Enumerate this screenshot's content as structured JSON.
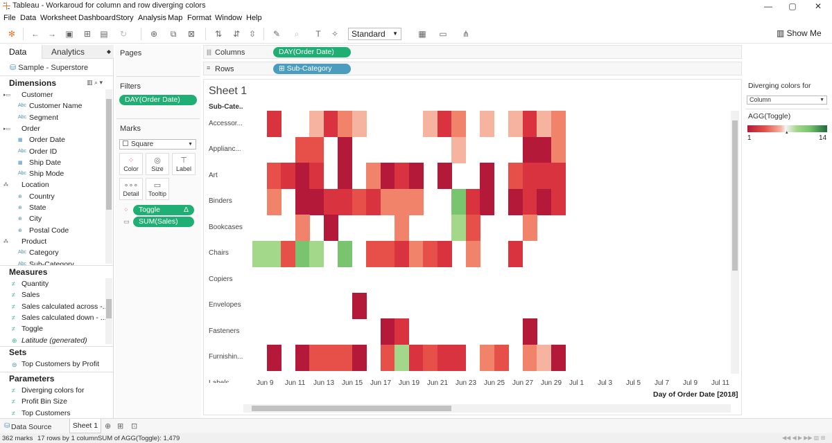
{
  "window": {
    "title": "Tableau - Workaroud for column and row diverging colors",
    "controls": [
      "—",
      "▢",
      "✕"
    ]
  },
  "menu": [
    "File",
    "Data",
    "Worksheet",
    "Dashboard",
    "Story",
    "Analysis",
    "Map",
    "Format",
    "Window",
    "Help"
  ],
  "toolbar": {
    "fit_select": "Standard",
    "show_me": "Show Me"
  },
  "data_pane": {
    "tabs": [
      "Data",
      "Analytics"
    ],
    "datasource": "Sample - Superstore",
    "dimensions_header": "Dimensions",
    "dimensions": [
      {
        "label": "Customer",
        "type": "folder",
        "indent": 0
      },
      {
        "label": "Customer Name",
        "type": "abc",
        "indent": 1
      },
      {
        "label": "Segment",
        "type": "abc",
        "indent": 1
      },
      {
        "label": "Order",
        "type": "folder",
        "indent": 0
      },
      {
        "label": "Order Date",
        "type": "date",
        "indent": 1
      },
      {
        "label": "Order ID",
        "type": "abc",
        "indent": 1
      },
      {
        "label": "Ship Date",
        "type": "date",
        "indent": 1
      },
      {
        "label": "Ship Mode",
        "type": "abc",
        "indent": 1
      },
      {
        "label": "Location",
        "type": "hier",
        "indent": 0
      },
      {
        "label": "Country",
        "type": "geo",
        "indent": 1
      },
      {
        "label": "State",
        "type": "geo",
        "indent": 1
      },
      {
        "label": "City",
        "type": "geo",
        "indent": 1
      },
      {
        "label": "Postal Code",
        "type": "geo",
        "indent": 1
      },
      {
        "label": "Product",
        "type": "hier",
        "indent": 0
      },
      {
        "label": "Category",
        "type": "abc",
        "indent": 1
      },
      {
        "label": "Sub-Category",
        "type": "abc",
        "indent": 1
      }
    ],
    "measures_header": "Measures",
    "measures": [
      "Quantity",
      "Sales",
      "Sales calculated across -...",
      "Sales calculated down - ...",
      "Toggle",
      "Latitude (generated)"
    ],
    "sets_header": "Sets",
    "sets": [
      "Top Customers by Profit"
    ],
    "parameters_header": "Parameters",
    "parameters": [
      "Diverging colors for",
      "Profit Bin Size",
      "Top Customers"
    ]
  },
  "cards": {
    "pages": "Pages",
    "filters": "Filters",
    "filter_pill": "DAY(Order Date)",
    "marks": "Marks",
    "mark_type": "Square",
    "mark_buttons": [
      "Color",
      "Size",
      "Label",
      "Detail",
      "Tooltip"
    ],
    "toggle_pill": "Toggle",
    "toggle_delta": "Δ",
    "sales_pill": "SUM(Sales)"
  },
  "shelves": {
    "columns_label": "Columns",
    "columns_pill": "DAY(Order Date)",
    "rows_label": "Rows",
    "rows_pill": "Sub-Category"
  },
  "sheet": {
    "title": "Sheet 1",
    "row_header": "Sub-Cate..",
    "rows": [
      "Accessor...",
      "Applianc...",
      "Art",
      "Binders",
      "Bookcases",
      "Chairs",
      "Copiers",
      "Envelopes",
      "Fasteners",
      "Furnishin...",
      "Labels"
    ],
    "x_ticks": [
      "Jun 9",
      "Jun 11",
      "Jun 13",
      "Jun 15",
      "Jun 17",
      "Jun 19",
      "Jun 21",
      "Jun 23",
      "Jun 25",
      "Jun 27",
      "Jun 29",
      "Jul 1",
      "Jul 3",
      "Jul 5",
      "Jul 7",
      "Jul 9",
      "Jul 11"
    ],
    "x_title": "Day of Order Date [2018]"
  },
  "right_panel": {
    "param_title": "Diverging colors for",
    "param_value": "Column",
    "legend_title": "AGG(Toggle)",
    "legend_min": "1",
    "legend_max": "14"
  },
  "sheet_tabs": {
    "data_source": "Data Source",
    "sheet": "Sheet 1"
  },
  "status": {
    "marks": "362 marks",
    "dims": "17 rows by 1 column",
    "sum": "SUM of AGG(Toggle): 1,479"
  },
  "chart_data": {
    "type": "heatmap",
    "x_title": "Day of Order Date [2018]",
    "y_header": "Sub-Cate..",
    "colors": {
      "dark_red": "#b5193a",
      "red": "#d93340",
      "red_mid": "#e65048",
      "salmon": "#f0836a",
      "light_salmon": "#f5b3a0",
      "light_green": "#a3d78a",
      "green": "#79c46e"
    },
    "cells": [
      {
        "row": 0,
        "col": 1,
        "c": "red"
      },
      {
        "row": 0,
        "col": 4,
        "c": "light_salmon"
      },
      {
        "row": 0,
        "col": 5,
        "c": "red"
      },
      {
        "row": 0,
        "col": 6,
        "c": "salmon"
      },
      {
        "row": 0,
        "col": 7,
        "c": "light_salmon"
      },
      {
        "row": 0,
        "col": 12,
        "c": "light_salmon"
      },
      {
        "row": 0,
        "col": 13,
        "c": "red"
      },
      {
        "row": 0,
        "col": 14,
        "c": "salmon"
      },
      {
        "row": 0,
        "col": 16,
        "c": "light_salmon"
      },
      {
        "row": 0,
        "col": 18,
        "c": "light_salmon"
      },
      {
        "row": 0,
        "col": 19,
        "c": "red"
      },
      {
        "row": 0,
        "col": 20,
        "c": "light_salmon"
      },
      {
        "row": 0,
        "col": 21,
        "c": "salmon"
      },
      {
        "row": 1,
        "col": 3,
        "c": "red_mid"
      },
      {
        "row": 1,
        "col": 4,
        "c": "red_mid"
      },
      {
        "row": 1,
        "col": 6,
        "c": "dark_red"
      },
      {
        "row": 1,
        "col": 14,
        "c": "light_salmon"
      },
      {
        "row": 1,
        "col": 19,
        "c": "dark_red"
      },
      {
        "row": 1,
        "col": 20,
        "c": "dark_red"
      },
      {
        "row": 1,
        "col": 21,
        "c": "salmon"
      },
      {
        "row": 2,
        "col": 1,
        "c": "red_mid"
      },
      {
        "row": 2,
        "col": 2,
        "c": "red"
      },
      {
        "row": 2,
        "col": 3,
        "c": "dark_red"
      },
      {
        "row": 2,
        "col": 4,
        "c": "red"
      },
      {
        "row": 2,
        "col": 6,
        "c": "dark_red"
      },
      {
        "row": 2,
        "col": 8,
        "c": "salmon"
      },
      {
        "row": 2,
        "col": 9,
        "c": "dark_red"
      },
      {
        "row": 2,
        "col": 10,
        "c": "red"
      },
      {
        "row": 2,
        "col": 11,
        "c": "dark_red"
      },
      {
        "row": 2,
        "col": 13,
        "c": "dark_red"
      },
      {
        "row": 2,
        "col": 16,
        "c": "dark_red"
      },
      {
        "row": 2,
        "col": 18,
        "c": "red_mid"
      },
      {
        "row": 2,
        "col": 19,
        "c": "red"
      },
      {
        "row": 2,
        "col": 20,
        "c": "red"
      },
      {
        "row": 2,
        "col": 21,
        "c": "red"
      },
      {
        "row": 3,
        "col": 1,
        "c": "salmon"
      },
      {
        "row": 3,
        "col": 3,
        "c": "dark_red"
      },
      {
        "row": 3,
        "col": 4,
        "c": "dark_red"
      },
      {
        "row": 3,
        "col": 5,
        "c": "red"
      },
      {
        "row": 3,
        "col": 6,
        "c": "red"
      },
      {
        "row": 3,
        "col": 7,
        "c": "red_mid"
      },
      {
        "row": 3,
        "col": 8,
        "c": "red"
      },
      {
        "row": 3,
        "col": 9,
        "c": "salmon"
      },
      {
        "row": 3,
        "col": 10,
        "c": "salmon"
      },
      {
        "row": 3,
        "col": 11,
        "c": "salmon"
      },
      {
        "row": 3,
        "col": 14,
        "c": "green"
      },
      {
        "row": 3,
        "col": 15,
        "c": "red"
      },
      {
        "row": 3,
        "col": 16,
        "c": "dark_red"
      },
      {
        "row": 3,
        "col": 18,
        "c": "dark_red"
      },
      {
        "row": 3,
        "col": 19,
        "c": "red"
      },
      {
        "row": 3,
        "col": 20,
        "c": "dark_red"
      },
      {
        "row": 3,
        "col": 21,
        "c": "red"
      },
      {
        "row": 4,
        "col": 3,
        "c": "salmon"
      },
      {
        "row": 4,
        "col": 5,
        "c": "dark_red"
      },
      {
        "row": 4,
        "col": 10,
        "c": "salmon"
      },
      {
        "row": 4,
        "col": 14,
        "c": "light_green"
      },
      {
        "row": 4,
        "col": 15,
        "c": "red_mid"
      },
      {
        "row": 4,
        "col": 19,
        "c": "salmon"
      },
      {
        "row": 5,
        "col": 0,
        "c": "light_green"
      },
      {
        "row": 5,
        "col": 1,
        "c": "light_green"
      },
      {
        "row": 5,
        "col": 2,
        "c": "red_mid"
      },
      {
        "row": 5,
        "col": 3,
        "c": "green"
      },
      {
        "row": 5,
        "col": 4,
        "c": "light_green"
      },
      {
        "row": 5,
        "col": 6,
        "c": "green"
      },
      {
        "row": 5,
        "col": 8,
        "c": "red_mid"
      },
      {
        "row": 5,
        "col": 9,
        "c": "red_mid"
      },
      {
        "row": 5,
        "col": 10,
        "c": "red"
      },
      {
        "row": 5,
        "col": 11,
        "c": "salmon"
      },
      {
        "row": 5,
        "col": 12,
        "c": "red_mid"
      },
      {
        "row": 5,
        "col": 13,
        "c": "red"
      },
      {
        "row": 5,
        "col": 15,
        "c": "salmon"
      },
      {
        "row": 5,
        "col": 18,
        "c": "red"
      },
      {
        "row": 7,
        "col": 7,
        "c": "dark_red"
      },
      {
        "row": 8,
        "col": 9,
        "c": "dark_red"
      },
      {
        "row": 8,
        "col": 10,
        "c": "red"
      },
      {
        "row": 8,
        "col": 19,
        "c": "dark_red"
      },
      {
        "row": 9,
        "col": 1,
        "c": "dark_red"
      },
      {
        "row": 9,
        "col": 3,
        "c": "dark_red"
      },
      {
        "row": 9,
        "col": 4,
        "c": "red_mid"
      },
      {
        "row": 9,
        "col": 5,
        "c": "red_mid"
      },
      {
        "row": 9,
        "col": 6,
        "c": "red_mid"
      },
      {
        "row": 9,
        "col": 7,
        "c": "dark_red"
      },
      {
        "row": 9,
        "col": 9,
        "c": "red_mid"
      },
      {
        "row": 9,
        "col": 10,
        "c": "light_green"
      },
      {
        "row": 9,
        "col": 11,
        "c": "red"
      },
      {
        "row": 9,
        "col": 12,
        "c": "red_mid"
      },
      {
        "row": 9,
        "col": 13,
        "c": "red"
      },
      {
        "row": 9,
        "col": 14,
        "c": "red"
      },
      {
        "row": 9,
        "col": 16,
        "c": "salmon"
      },
      {
        "row": 9,
        "col": 17,
        "c": "red_mid"
      },
      {
        "row": 9,
        "col": 19,
        "c": "salmon"
      },
      {
        "row": 9,
        "col": 20,
        "c": "light_salmon"
      },
      {
        "row": 9,
        "col": 21,
        "c": "dark_red"
      }
    ]
  }
}
